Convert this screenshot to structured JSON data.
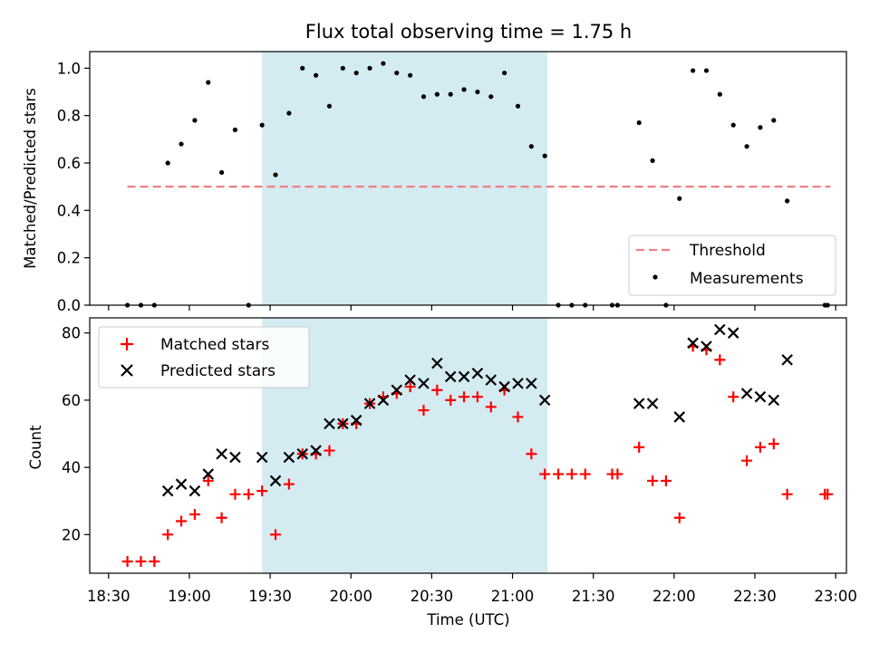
{
  "chart_data": [
    {
      "type": "scatter",
      "title": "Flux total observing time = 1.75 h",
      "xlabel": "",
      "ylabel": "Matched/Predicted stars",
      "xlim_minutes": [
        1103,
        1384
      ],
      "ylim": [
        0,
        1.07
      ],
      "y_ticks": [
        "0.0",
        "0.2",
        "0.4",
        "0.6",
        "0.8",
        "1.0"
      ],
      "grid": false,
      "legend_position": "lower-right",
      "shaded_interval": [
        "19:27",
        "21:13"
      ],
      "shade_color": "#add8e6",
      "threshold": {
        "name": "Threshold",
        "value": 0.5,
        "x_range": [
          "18:37",
          "22:58"
        ],
        "style": "dashed",
        "color": "#f08080"
      },
      "series": [
        {
          "name": "Measurements",
          "color": "#000000",
          "marker": "dot",
          "points": [
            [
              "18:37",
              0.0
            ],
            [
              "18:42",
              0.0
            ],
            [
              "18:47",
              0.0
            ],
            [
              "18:52",
              0.6
            ],
            [
              "18:57",
              0.68
            ],
            [
              "19:02",
              0.78
            ],
            [
              "19:07",
              0.94
            ],
            [
              "19:12",
              0.56
            ],
            [
              "19:17",
              0.74
            ],
            [
              "19:22",
              0.0
            ],
            [
              "19:27",
              0.76
            ],
            [
              "19:32",
              0.55
            ],
            [
              "19:37",
              0.81
            ],
            [
              "19:42",
              1.0
            ],
            [
              "19:47",
              0.97
            ],
            [
              "19:52",
              0.84
            ],
            [
              "19:57",
              1.0
            ],
            [
              "20:02",
              0.98
            ],
            [
              "20:07",
              1.0
            ],
            [
              "20:12",
              1.02
            ],
            [
              "20:17",
              0.98
            ],
            [
              "20:22",
              0.97
            ],
            [
              "20:27",
              0.88
            ],
            [
              "20:32",
              0.89
            ],
            [
              "20:37",
              0.89
            ],
            [
              "20:42",
              0.91
            ],
            [
              "20:47",
              0.9
            ],
            [
              "20:52",
              0.88
            ],
            [
              "20:57",
              0.98
            ],
            [
              "21:02",
              0.84
            ],
            [
              "21:07",
              0.67
            ],
            [
              "21:12",
              0.63
            ],
            [
              "21:17",
              0.0
            ],
            [
              "21:22",
              0.0
            ],
            [
              "21:27",
              0.0
            ],
            [
              "21:37",
              0.0
            ],
            [
              "21:39",
              0.0
            ],
            [
              "21:47",
              0.77
            ],
            [
              "21:52",
              0.61
            ],
            [
              "21:57",
              0.0
            ],
            [
              "22:02",
              0.45
            ],
            [
              "22:07",
              0.99
            ],
            [
              "22:12",
              0.99
            ],
            [
              "22:17",
              0.89
            ],
            [
              "22:22",
              0.76
            ],
            [
              "22:27",
              0.67
            ],
            [
              "22:32",
              0.75
            ],
            [
              "22:37",
              0.78
            ],
            [
              "22:42",
              0.44
            ],
            [
              "22:56",
              0.0
            ],
            [
              "22:57",
              0.0
            ]
          ]
        }
      ]
    },
    {
      "type": "scatter",
      "title": "",
      "xlabel": "Time (UTC)",
      "ylabel": "Count",
      "xlim_minutes": [
        1103,
        1384
      ],
      "ylim": [
        8.5,
        84.5
      ],
      "y_ticks": [
        "20",
        "40",
        "60",
        "80"
      ],
      "x_ticks": [
        "18:30",
        "19:00",
        "19:30",
        "20:00",
        "20:30",
        "21:00",
        "21:30",
        "22:00",
        "22:30",
        "23:00"
      ],
      "grid": false,
      "legend_position": "upper-left",
      "shaded_interval": [
        "19:27",
        "21:13"
      ],
      "shade_color": "#add8e6",
      "series": [
        {
          "name": "Matched stars",
          "color": "#ff0000",
          "marker": "plus",
          "points": [
            [
              "18:37",
              12
            ],
            [
              "18:42",
              12
            ],
            [
              "18:47",
              12
            ],
            [
              "18:52",
              20
            ],
            [
              "18:57",
              24
            ],
            [
              "19:02",
              26
            ],
            [
              "19:07",
              36
            ],
            [
              "19:12",
              25
            ],
            [
              "19:17",
              32
            ],
            [
              "19:22",
              32
            ],
            [
              "19:27",
              33
            ],
            [
              "19:32",
              20
            ],
            [
              "19:37",
              35
            ],
            [
              "19:42",
              44
            ],
            [
              "19:47",
              44
            ],
            [
              "19:52",
              45
            ],
            [
              "19:57",
              53
            ],
            [
              "20:02",
              53
            ],
            [
              "20:07",
              59
            ],
            [
              "20:12",
              61
            ],
            [
              "20:17",
              62
            ],
            [
              "20:22",
              64
            ],
            [
              "20:27",
              57
            ],
            [
              "20:32",
              63
            ],
            [
              "20:37",
              60
            ],
            [
              "20:42",
              61
            ],
            [
              "20:47",
              61
            ],
            [
              "20:52",
              58
            ],
            [
              "20:57",
              63
            ],
            [
              "21:02",
              55
            ],
            [
              "21:07",
              44
            ],
            [
              "21:12",
              38
            ],
            [
              "21:17",
              38
            ],
            [
              "21:22",
              38
            ],
            [
              "21:27",
              38
            ],
            [
              "21:37",
              38
            ],
            [
              "21:39",
              38
            ],
            [
              "21:47",
              46
            ],
            [
              "21:52",
              36
            ],
            [
              "21:57",
              36
            ],
            [
              "22:02",
              25
            ],
            [
              "22:07",
              76
            ],
            [
              "22:12",
              75
            ],
            [
              "22:17",
              72
            ],
            [
              "22:22",
              61
            ],
            [
              "22:27",
              42
            ],
            [
              "22:32",
              46
            ],
            [
              "22:37",
              47
            ],
            [
              "22:42",
              32
            ],
            [
              "22:56",
              32
            ],
            [
              "22:57",
              32
            ]
          ]
        },
        {
          "name": "Predicted stars",
          "color": "#000000",
          "marker": "x",
          "points": [
            [
              "18:52",
              33
            ],
            [
              "18:57",
              35
            ],
            [
              "19:02",
              33
            ],
            [
              "19:07",
              38
            ],
            [
              "19:12",
              44
            ],
            [
              "19:17",
              43
            ],
            [
              "19:27",
              43
            ],
            [
              "19:32",
              36
            ],
            [
              "19:37",
              43
            ],
            [
              "19:42",
              44
            ],
            [
              "19:47",
              45
            ],
            [
              "19:52",
              53
            ],
            [
              "19:57",
              53
            ],
            [
              "20:02",
              54
            ],
            [
              "20:07",
              59
            ],
            [
              "20:12",
              60
            ],
            [
              "20:17",
              63
            ],
            [
              "20:22",
              66
            ],
            [
              "20:27",
              65
            ],
            [
              "20:32",
              71
            ],
            [
              "20:37",
              67
            ],
            [
              "20:42",
              67
            ],
            [
              "20:47",
              68
            ],
            [
              "20:52",
              66
            ],
            [
              "20:57",
              64
            ],
            [
              "21:02",
              65
            ],
            [
              "21:07",
              65
            ],
            [
              "21:12",
              60
            ],
            [
              "21:47",
              59
            ],
            [
              "21:52",
              59
            ],
            [
              "22:02",
              55
            ],
            [
              "22:07",
              77
            ],
            [
              "22:12",
              76
            ],
            [
              "22:17",
              81
            ],
            [
              "22:22",
              80
            ],
            [
              "22:27",
              62
            ],
            [
              "22:32",
              61
            ],
            [
              "22:37",
              60
            ],
            [
              "22:42",
              72
            ]
          ]
        }
      ]
    }
  ]
}
